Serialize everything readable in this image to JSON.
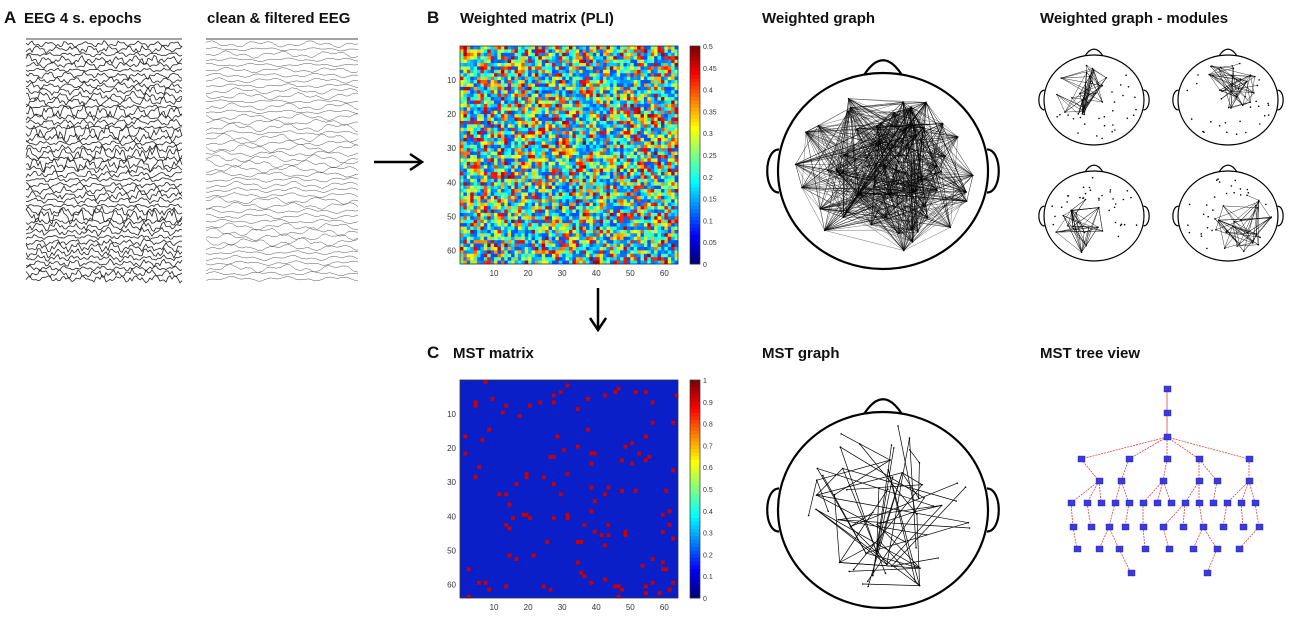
{
  "panel_a": {
    "letter": "A",
    "title_raw": "EEG 4 s. epochs",
    "title_clean": "clean & filtered  EEG"
  },
  "panel_b": {
    "letter": "B",
    "matrix_title": "Weighted matrix (PLI)",
    "graph_title": "Weighted graph",
    "modules_title": "Weighted graph - modules",
    "colorbar_ticks": [
      "0.5",
      "0.45",
      "0.4",
      "0.35",
      "0.3",
      "0.25",
      "0.2",
      "0.15",
      "0.1",
      "0.05",
      "0"
    ],
    "axis_ticks": [
      "10",
      "20",
      "30",
      "40",
      "50",
      "60"
    ]
  },
  "panel_c": {
    "letter": "C",
    "matrix_title": "MST matrix",
    "graph_title": "MST graph",
    "tree_title": "MST tree view",
    "colorbar_ticks": [
      "1",
      "0.9",
      "0.8",
      "0.7",
      "0.6",
      "0.5",
      "0.4",
      "0.3",
      "0.2",
      "0.1",
      "0"
    ],
    "axis_ticks": [
      "10",
      "20",
      "30",
      "40",
      "50",
      "60"
    ]
  },
  "colors": {
    "matrix_low": "#0a1fc8",
    "matrix_high": "#c80000",
    "tree_node": "#3a3ae0",
    "tree_edge": "#e04040"
  }
}
